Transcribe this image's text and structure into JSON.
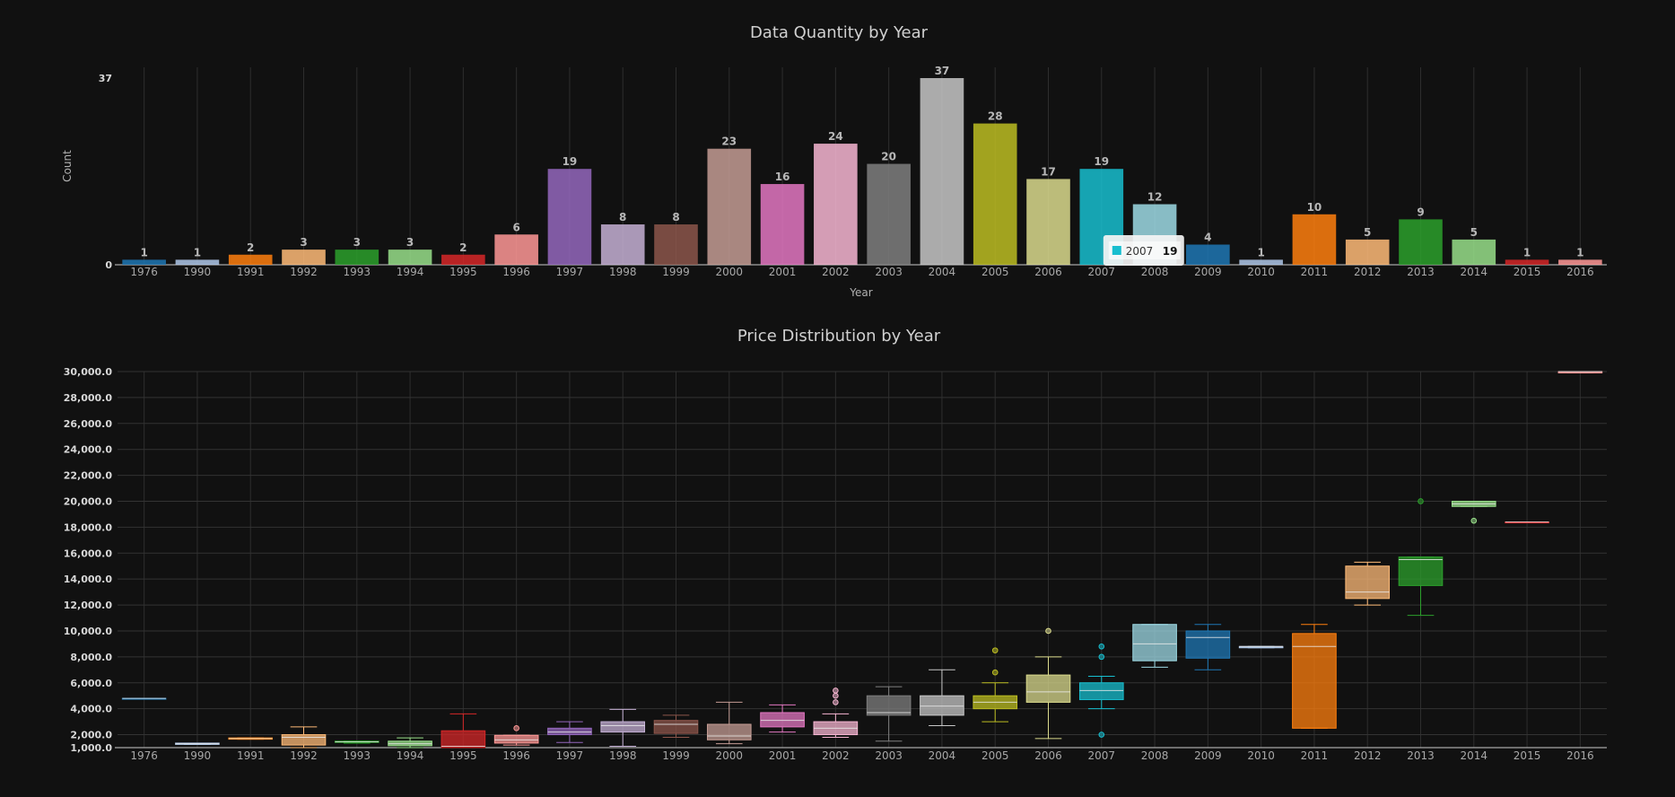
{
  "chart_data": [
    {
      "type": "bar",
      "title": "Data Quantity by Year",
      "xlabel": "Year",
      "ylabel": "Count",
      "ylim": [
        0,
        37
      ],
      "yticks": [
        "0",
        "37"
      ],
      "grid": "vertical",
      "categories": [
        "1976",
        "1990",
        "1991",
        "1992",
        "1993",
        "1994",
        "1995",
        "1996",
        "1997",
        "1998",
        "1999",
        "2000",
        "2001",
        "2002",
        "2003",
        "2004",
        "2005",
        "2006",
        "2007",
        "2008",
        "2009",
        "2010",
        "2011",
        "2012",
        "2013",
        "2014",
        "2015",
        "2016"
      ],
      "values": [
        1,
        1,
        2,
        3,
        3,
        3,
        2,
        6,
        19,
        8,
        8,
        23,
        16,
        24,
        20,
        37,
        28,
        17,
        19,
        12,
        4,
        1,
        10,
        5,
        9,
        5,
        1,
        1
      ],
      "colors": [
        "#1f77b4",
        "#aec7e8",
        "#ff7f0e",
        "#ffbb78",
        "#2ca02c",
        "#98df8a",
        "#d62728",
        "#ff9896",
        "#9467bd",
        "#c5b0d5",
        "#8c564b",
        "#c49c94",
        "#e377c2",
        "#f7b6d2",
        "#7f7f7f",
        "#c7c7c7",
        "#bcbd22",
        "#dbdb8d",
        "#17becf",
        "#9edae5",
        "#1f77b4",
        "#aec7e8",
        "#ff7f0e",
        "#ffbb78",
        "#2ca02c",
        "#98df8a",
        "#d62728",
        "#ff9896"
      ],
      "tooltip": {
        "category": "2007",
        "value": "19",
        "color": "#17becf"
      }
    },
    {
      "type": "box",
      "title": "Price Distribution by Year",
      "ylim": [
        1000,
        30000
      ],
      "yticks": [
        "1,000.0",
        "2,000.0",
        "4,000.0",
        "6,000.0",
        "8,000.0",
        "10,000.0",
        "12,000.0",
        "14,000.0",
        "16,000.0",
        "18,000.0",
        "20,000.0",
        "22,000.0",
        "24,000.0",
        "26,000.0",
        "28,000.0",
        "30,000.0"
      ],
      "grid": "both",
      "categories": [
        "1976",
        "1990",
        "1991",
        "1992",
        "1993",
        "1994",
        "1995",
        "1996",
        "1997",
        "1998",
        "1999",
        "2000",
        "2001",
        "2002",
        "2003",
        "2004",
        "2005",
        "2006",
        "2007",
        "2008",
        "2009",
        "2010",
        "2011",
        "2012",
        "2013",
        "2014",
        "2015",
        "2016"
      ],
      "boxes": [
        {
          "min": 4800,
          "q1": 4800,
          "median": 4800,
          "q3": 4800,
          "max": 4800,
          "outliers": []
        },
        {
          "min": 1250,
          "q1": 1250,
          "median": 1300,
          "q3": 1350,
          "max": 1350,
          "outliers": []
        },
        {
          "min": 1650,
          "q1": 1650,
          "median": 1700,
          "q3": 1750,
          "max": 1750,
          "outliers": []
        },
        {
          "min": 1000,
          "q1": 1200,
          "median": 1800,
          "q3": 2000,
          "max": 2600,
          "outliers": []
        },
        {
          "min": 1350,
          "q1": 1400,
          "median": 1450,
          "q3": 1500,
          "max": 1500,
          "outliers": []
        },
        {
          "min": 1000,
          "q1": 1150,
          "median": 1300,
          "q3": 1500,
          "max": 1750,
          "outliers": []
        },
        {
          "min": 1000,
          "q1": 1000,
          "median": 1100,
          "q3": 2300,
          "max": 3600,
          "outliers": []
        },
        {
          "min": 1200,
          "q1": 1350,
          "median": 1600,
          "q3": 1950,
          "max": 1950,
          "outliers": [
            2500
          ]
        },
        {
          "min": 1400,
          "q1": 2000,
          "median": 2200,
          "q3": 2500,
          "max": 3000,
          "outliers": []
        },
        {
          "min": 1100,
          "q1": 2200,
          "median": 2700,
          "q3": 3000,
          "max": 3950,
          "outliers": []
        },
        {
          "min": 1800,
          "q1": 2100,
          "median": 2800,
          "q3": 3100,
          "max": 3500,
          "outliers": []
        },
        {
          "min": 1300,
          "q1": 1600,
          "median": 1900,
          "q3": 2800,
          "max": 4500,
          "outliers": []
        },
        {
          "min": 2200,
          "q1": 2600,
          "median": 3100,
          "q3": 3700,
          "max": 4300,
          "outliers": []
        },
        {
          "min": 1800,
          "q1": 2000,
          "median": 2500,
          "q3": 3000,
          "max": 3600,
          "outliers": [
            4500,
            5000,
            5400
          ]
        },
        {
          "min": 1500,
          "q1": 3500,
          "median": 3700,
          "q3": 5000,
          "max": 5700,
          "outliers": []
        },
        {
          "min": 2700,
          "q1": 3500,
          "median": 4200,
          "q3": 5000,
          "max": 7000,
          "outliers": []
        },
        {
          "min": 3000,
          "q1": 4000,
          "median": 4500,
          "q3": 5000,
          "max": 6000,
          "outliers": [
            6800,
            8500
          ]
        },
        {
          "min": 1700,
          "q1": 4500,
          "median": 5300,
          "q3": 6600,
          "max": 8000,
          "outliers": [
            10000
          ]
        },
        {
          "min": 4000,
          "q1": 4700,
          "median": 5400,
          "q3": 6000,
          "max": 6500,
          "outliers": [
            2000,
            8000,
            8800
          ]
        },
        {
          "min": 7200,
          "q1": 7700,
          "median": 9000,
          "q3": 10500,
          "max": 10500,
          "outliers": []
        },
        {
          "min": 7000,
          "q1": 7900,
          "median": 9500,
          "q3": 10000,
          "max": 10500,
          "outliers": []
        },
        {
          "min": 8700,
          "q1": 8700,
          "median": 8800,
          "q3": 8800,
          "max": 8800,
          "outliers": []
        },
        {
          "min": 2500,
          "q1": 2500,
          "median": 8800,
          "q3": 9800,
          "max": 10500,
          "outliers": []
        },
        {
          "min": 12000,
          "q1": 12500,
          "median": 13000,
          "q3": 15000,
          "max": 15300,
          "outliers": []
        },
        {
          "min": 11200,
          "q1": 13500,
          "median": 15500,
          "q3": 15700,
          "max": 15700,
          "outliers": [
            20000
          ]
        },
        {
          "min": 19600,
          "q1": 19600,
          "median": 19800,
          "q3": 20000,
          "max": 20000,
          "outliers": [
            18500
          ]
        },
        {
          "min": 18400,
          "q1": 18400,
          "median": 18400,
          "q3": 18400,
          "max": 18400,
          "outliers": []
        },
        {
          "min": 29900,
          "q1": 29900,
          "median": 30000,
          "q3": 30000,
          "max": 30000,
          "outliers": []
        }
      ]
    }
  ]
}
